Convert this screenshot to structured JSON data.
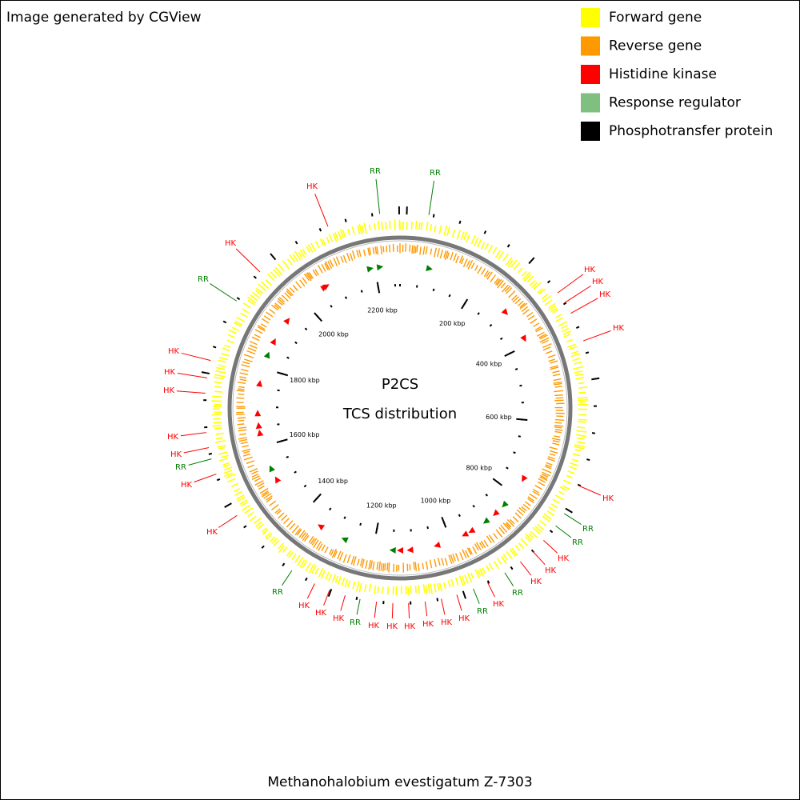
{
  "header": {
    "credit": "Image generated by CGView"
  },
  "legend": [
    {
      "label": "Forward gene",
      "color": "#ffff00"
    },
    {
      "label": "Reverse gene",
      "color": "#ff9900"
    },
    {
      "label": "Histidine kinase",
      "color": "#ff0000"
    },
    {
      "label": "Response regulator",
      "color": "#7fbf7f"
    },
    {
      "label": "Phosphotransfer protein",
      "color": "#000000"
    }
  ],
  "center": {
    "title": "P2CS",
    "subtitle": "TCS distribution"
  },
  "scale_labels": [
    "200 kbp",
    "400 kbp",
    "600 kbp",
    "800 kbp",
    "1000 kbp",
    "1200 kbp",
    "1400 kbp",
    "1600 kbp",
    "1800 kbp",
    "2000 kbp",
    "2200 kbp"
  ],
  "feature_labels": [
    {
      "text": "RR",
      "color": "#007f00"
    },
    {
      "text": "HK",
      "color": "#ff0000"
    },
    {
      "text": "HK",
      "color": "#ff0000"
    },
    {
      "text": "HK",
      "color": "#ff0000"
    },
    {
      "text": "HK",
      "color": "#ff0000"
    },
    {
      "text": "HK",
      "color": "#ff0000"
    },
    {
      "text": "RR",
      "color": "#007f00"
    },
    {
      "text": "RR",
      "color": "#007f00"
    },
    {
      "text": "HK",
      "color": "#ff0000"
    },
    {
      "text": "HK",
      "color": "#ff0000"
    },
    {
      "text": "HK",
      "color": "#ff0000"
    },
    {
      "text": "RR",
      "color": "#007f00"
    },
    {
      "text": "HK",
      "color": "#ff0000"
    },
    {
      "text": "RR",
      "color": "#007f00"
    },
    {
      "text": "HK",
      "color": "#ff0000"
    },
    {
      "text": "HK",
      "color": "#ff0000"
    },
    {
      "text": "HK",
      "color": "#ff0000"
    },
    {
      "text": "HK",
      "color": "#ff0000"
    },
    {
      "text": "HK",
      "color": "#ff0000"
    },
    {
      "text": "HK",
      "color": "#ff0000"
    },
    {
      "text": "RR",
      "color": "#007f00"
    },
    {
      "text": "HK",
      "color": "#ff0000"
    },
    {
      "text": "HK",
      "color": "#ff0000"
    },
    {
      "text": "HK",
      "color": "#ff0000"
    },
    {
      "text": "RR",
      "color": "#007f00"
    },
    {
      "text": "HK",
      "color": "#ff0000"
    },
    {
      "text": "HK",
      "color": "#ff0000"
    },
    {
      "text": "RR",
      "color": "#007f00"
    },
    {
      "text": "HK",
      "color": "#ff0000"
    },
    {
      "text": "HK",
      "color": "#ff0000"
    },
    {
      "text": "HK",
      "color": "#ff0000"
    },
    {
      "text": "HK",
      "color": "#ff0000"
    },
    {
      "text": "HK",
      "color": "#ff0000"
    },
    {
      "text": "RR",
      "color": "#007f00"
    },
    {
      "text": "HK",
      "color": "#ff0000"
    },
    {
      "text": "HK",
      "color": "#ff0000"
    },
    {
      "text": "RR",
      "color": "#007f00"
    }
  ],
  "footer": {
    "organism": "Methanohalobium evestigatum Z-7303"
  }
}
